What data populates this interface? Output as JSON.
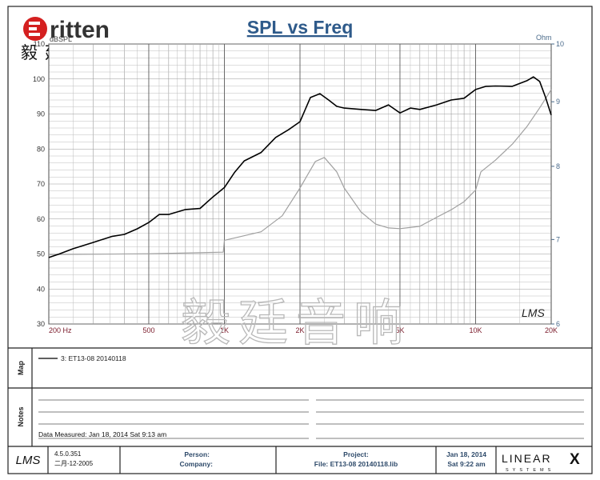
{
  "header": {
    "logo": "ritten",
    "logo_cn": "毅廷音响"
  },
  "chart_data": {
    "type": "line",
    "title": "SPL vs Freq",
    "y_label": "dBSPL",
    "y2_label": "Ohm",
    "xscale": "log",
    "y2scale": "log",
    "grid": true,
    "xlim": [
      200,
      20000
    ],
    "xticks": [
      {
        "value": 200,
        "label": "200 Hz"
      },
      500,
      {
        "value": 1000,
        "label": "1K"
      },
      {
        "value": 2000,
        "label": "2K"
      },
      {
        "value": 5000,
        "label": "5K"
      },
      {
        "value": 10000,
        "label": "10K"
      },
      {
        "value": 20000,
        "label": "20K"
      }
    ],
    "ylim": [
      30,
      110
    ],
    "yticks": [
      30,
      40,
      50,
      60,
      70,
      80,
      90,
      100,
      110
    ],
    "y2lim": [
      6,
      10
    ],
    "y2ticks": [
      6,
      7,
      8,
      9,
      10
    ],
    "series": [
      {
        "name": "3: ET13-08  20140118",
        "color": "#000000",
        "x": [
          200,
          220,
          250,
          300,
          356,
          400,
          450,
          500,
          550,
          600,
          700,
          800,
          900,
          1000,
          1100,
          1200,
          1400,
          1600,
          1800,
          2000,
          2200,
          2400,
          2600,
          2800,
          3000,
          3500,
          4000,
          4500,
          5000,
          5500,
          6000,
          7000,
          8000,
          9000,
          10000,
          11000,
          12000,
          14000,
          16000,
          17000,
          18000,
          19000,
          20000
        ],
        "values": [
          49,
          50,
          51.5,
          53.3,
          55,
          55.6,
          57.2,
          59,
          61.3,
          61.3,
          62.7,
          63,
          66.3,
          69,
          73.4,
          76.6,
          79,
          83.3,
          85.5,
          87.8,
          94.7,
          95.8,
          94,
          92.2,
          91.7,
          91.3,
          91,
          92.6,
          90.3,
          91.7,
          91.3,
          92.6,
          94,
          94.5,
          97,
          97.9,
          98,
          97.9,
          99.5,
          100.6,
          99.3,
          94.7,
          89.7
        ]
      },
      {
        "color": "#a0a0a0",
        "axis": "y2",
        "x": [
          200,
          500,
          990,
          1000,
          1400,
          1700,
          2000,
          2300,
          2500,
          2800,
          3000,
          3500,
          4000,
          4500,
          5000,
          6000,
          7000,
          8000,
          9000,
          10000,
          10500,
          12000,
          14000,
          16000,
          18000,
          20000
        ],
        "values": [
          6.81,
          6.82,
          6.84,
          6.99,
          7.1,
          7.31,
          7.69,
          8.07,
          8.13,
          7.92,
          7.69,
          7.36,
          7.2,
          7.15,
          7.14,
          7.17,
          7.29,
          7.39,
          7.5,
          7.66,
          7.92,
          8.09,
          8.33,
          8.6,
          8.9,
          9.2
        ]
      }
    ],
    "watermark": "毅廷音响",
    "mark": "LMS"
  },
  "map": {
    "label": "Map"
  },
  "notes": {
    "label": "Notes",
    "measured": "Data Measured: Jan 18, 2014  Sat  9:13 am"
  },
  "footer": {
    "logo": "LMS",
    "version": "4.5.0.351",
    "version_date": "二月-12-2005",
    "person": "Person:",
    "company": "Company:",
    "project": "Project:",
    "file": "File: ET13-08 20140118.lib",
    "date": "Jan 18, 2014",
    "time": "Sat  9:22 am",
    "brand": "LINEAR",
    "brand_x": "X",
    "brand_sub": "SYSTEMS"
  }
}
